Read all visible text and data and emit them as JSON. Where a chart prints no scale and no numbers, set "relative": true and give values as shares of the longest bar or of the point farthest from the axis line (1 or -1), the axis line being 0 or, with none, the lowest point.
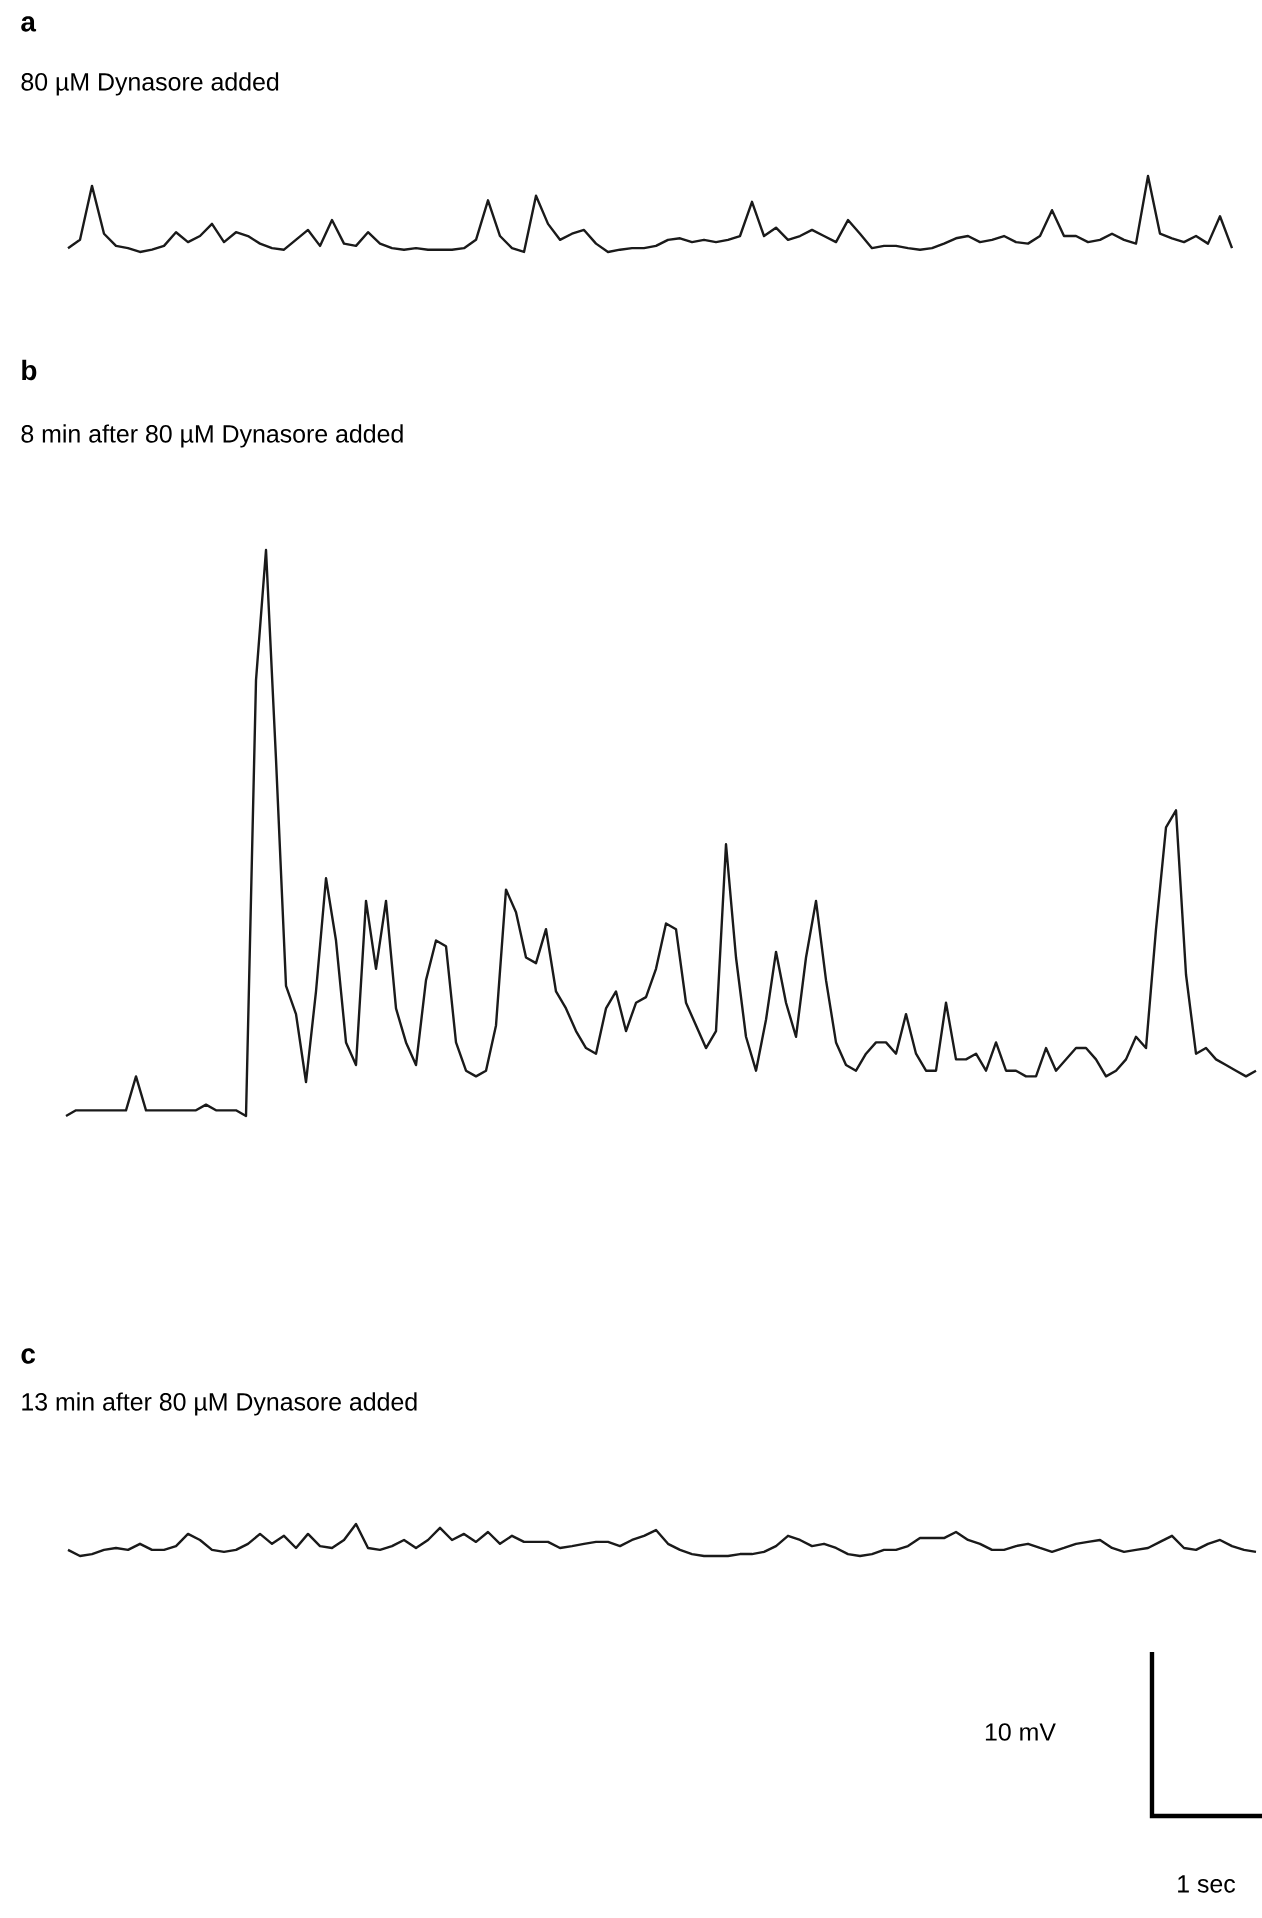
{
  "chart_data": [
    {
      "type": "line",
      "title": "a",
      "subtitle": "80 µM Dynasore added",
      "relative": true,
      "color": "#1a1a1a",
      "categories": [
        null,
        null,
        null,
        null,
        null,
        null,
        null,
        null,
        null,
        null,
        null,
        null,
        null,
        null,
        null,
        null,
        null,
        null,
        null,
        null,
        null,
        null,
        null,
        null,
        null,
        null,
        null,
        null,
        null,
        null,
        null,
        null,
        null,
        null,
        null,
        null,
        null,
        null,
        null,
        null,
        null,
        null,
        null,
        null,
        null,
        null,
        null,
        null,
        null,
        null,
        null,
        null,
        null,
        null,
        null,
        null,
        null,
        null,
        null,
        null,
        null,
        null,
        null,
        null,
        null,
        null,
        null,
        null,
        null,
        null,
        null,
        null,
        null,
        null,
        null,
        null,
        null,
        null,
        null,
        null,
        null,
        null,
        null,
        null,
        null,
        null,
        null,
        null,
        null,
        null,
        null,
        null,
        null,
        null,
        null,
        null,
        null,
        null
      ],
      "values": [
        0.05,
        0.16,
        0.87,
        0.24,
        0.08,
        0.05,
        0,
        0.03,
        0.08,
        0.26,
        0.13,
        0.21,
        0.37,
        0.13,
        0.26,
        0.21,
        0.11,
        0.05,
        0.03,
        0.16,
        0.29,
        0.08,
        0.42,
        0.11,
        0.08,
        0.26,
        0.11,
        0.05,
        0.03,
        0.05,
        0.03,
        0.03,
        0.03,
        0.05,
        0.16,
        0.68,
        0.21,
        0.05,
        0,
        0.74,
        0.37,
        0.16,
        0.24,
        0.29,
        0.11,
        0,
        0.03,
        0.05,
        0.05,
        0.08,
        0.16,
        0.18,
        0.13,
        0.16,
        0.13,
        0.16,
        0.21,
        0.66,
        0.21,
        0.32,
        0.16,
        0.21,
        0.29,
        0.21,
        0.13,
        0.42,
        0.24,
        0.05,
        0.08,
        0.08,
        0.05,
        0.03,
        0.05,
        0.11,
        0.18,
        0.21,
        0.13,
        0.16,
        0.21,
        0.13,
        0.11,
        0.21,
        0.55,
        0.21,
        0.21,
        0.13,
        0.16,
        0.24,
        0.16,
        0.11,
        1,
        0.24,
        0.18,
        0.13,
        0.21,
        0.11,
        0.47,
        0.05
      ]
    },
    {
      "type": "line",
      "title": "b",
      "subtitle": "8 min after 80 µM Dynasore added",
      "relative": true,
      "color": "#1a1a1a",
      "categories": [
        null,
        null,
        null,
        null,
        null,
        null,
        null,
        null,
        null,
        null,
        null,
        null,
        null,
        null,
        null,
        null,
        null,
        null,
        null,
        null,
        null,
        null,
        null,
        null,
        null,
        null,
        null,
        null,
        null,
        null,
        null,
        null,
        null,
        null,
        null,
        null,
        null,
        null,
        null,
        null,
        null,
        null,
        null,
        null,
        null,
        null,
        null,
        null,
        null,
        null,
        null,
        null,
        null,
        null,
        null,
        null,
        null,
        null,
        null,
        null,
        null,
        null,
        null,
        null,
        null,
        null,
        null,
        null,
        null,
        null,
        null,
        null,
        null,
        null,
        null,
        null,
        null,
        null,
        null,
        null,
        null,
        null,
        null,
        null,
        null,
        null,
        null,
        null,
        null,
        null,
        null,
        null,
        null,
        null,
        null,
        null,
        null,
        null,
        null,
        null,
        null,
        null,
        null,
        null,
        null,
        null,
        null,
        null,
        null,
        null,
        null,
        null,
        null,
        null,
        null,
        null,
        null,
        null,
        null,
        null
      ],
      "values": [
        0,
        0.01,
        0.01,
        0.01,
        0.01,
        0.01,
        0.01,
        0.07,
        0.01,
        0.01,
        0.01,
        0.01,
        0.01,
        0.01,
        0.02,
        0.01,
        0.01,
        0.01,
        0,
        0.77,
        1,
        0.63,
        0.23,
        0.18,
        0.06,
        0.22,
        0.42,
        0.31,
        0.13,
        0.09,
        0.38,
        0.26,
        0.38,
        0.19,
        0.13,
        0.09,
        0.24,
        0.31,
        0.3,
        0.13,
        0.08,
        0.07,
        0.08,
        0.16,
        0.4,
        0.36,
        0.28,
        0.27,
        0.33,
        0.22,
        0.19,
        0.15,
        0.12,
        0.11,
        0.19,
        0.22,
        0.15,
        0.2,
        0.21,
        0.26,
        0.34,
        0.33,
        0.2,
        0.16,
        0.12,
        0.15,
        0.48,
        0.28,
        0.14,
        0.08,
        0.17,
        0.29,
        0.2,
        0.14,
        0.28,
        0.38,
        0.24,
        0.13,
        0.09,
        0.08,
        0.11,
        0.13,
        0.13,
        0.11,
        0.18,
        0.11,
        0.08,
        0.08,
        0.2,
        0.1,
        0.1,
        0.11,
        0.08,
        0.13,
        0.08,
        0.08,
        0.07,
        0.07,
        0.12,
        0.08,
        0.1,
        0.12,
        0.12,
        0.1,
        0.07,
        0.08,
        0.1,
        0.14,
        0.12,
        0.33,
        0.51,
        0.54,
        0.25,
        0.11,
        0.12,
        0.1,
        0.09,
        0.08,
        0.07,
        0.08
      ]
    },
    {
      "type": "line",
      "title": "c",
      "subtitle": "13 min after 80 µM Dynasore added",
      "relative": true,
      "color": "#1a1a1a",
      "annotations": [
        "10 mV",
        "1 sec"
      ],
      "categories": [
        null,
        null,
        null,
        null,
        null,
        null,
        null,
        null,
        null,
        null,
        null,
        null,
        null,
        null,
        null,
        null,
        null,
        null,
        null,
        null,
        null,
        null,
        null,
        null,
        null,
        null,
        null,
        null,
        null,
        null,
        null,
        null,
        null,
        null,
        null,
        null,
        null,
        null,
        null,
        null,
        null,
        null,
        null,
        null,
        null,
        null,
        null,
        null,
        null,
        null,
        null,
        null,
        null,
        null,
        null,
        null,
        null,
        null,
        null,
        null,
        null,
        null,
        null,
        null,
        null,
        null,
        null,
        null,
        null,
        null,
        null,
        null,
        null,
        null,
        null,
        null,
        null,
        null,
        null,
        null,
        null,
        null,
        null,
        null,
        null,
        null,
        null,
        null,
        null,
        null,
        null,
        null,
        null,
        null,
        null,
        null,
        null,
        null,
        null,
        null
      ],
      "values": [
        0.19,
        0,
        0.06,
        0.19,
        0.25,
        0.19,
        0.38,
        0.19,
        0.19,
        0.31,
        0.69,
        0.5,
        0.19,
        0.13,
        0.19,
        0.38,
        0.69,
        0.38,
        0.63,
        0.25,
        0.69,
        0.31,
        0.25,
        0.5,
        1,
        0.25,
        0.19,
        0.31,
        0.5,
        0.25,
        0.5,
        0.88,
        0.5,
        0.69,
        0.44,
        0.75,
        0.38,
        0.63,
        0.44,
        0.44,
        0.44,
        0.25,
        0.31,
        0.38,
        0.44,
        0.44,
        0.31,
        0.5,
        0.63,
        0.81,
        0.38,
        0.19,
        0.06,
        0,
        0,
        0,
        0.06,
        0.06,
        0.13,
        0.31,
        0.63,
        0.5,
        0.31,
        0.38,
        0.25,
        0.06,
        0,
        0.06,
        0.19,
        0.19,
        0.31,
        0.56,
        0.56,
        0.56,
        0.75,
        0.5,
        0.38,
        0.19,
        0.19,
        0.31,
        0.38,
        0.25,
        0.13,
        0.25,
        0.38,
        0.44,
        0.5,
        0.25,
        0.13,
        0.19,
        0.25,
        0.44,
        0.63,
        0.25,
        0.19,
        0.38,
        0.5,
        0.31,
        0.19,
        0.13
      ]
    }
  ]
}
